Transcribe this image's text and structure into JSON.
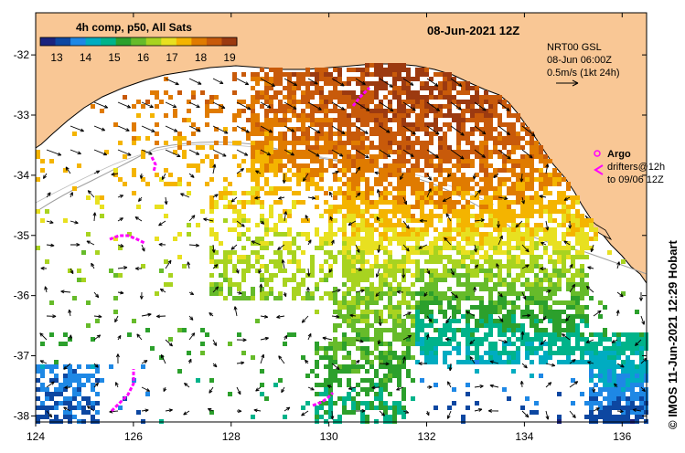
{
  "title": {
    "product": "4h comp, p50, All Sats",
    "date": "08-Jun-2021 12Z"
  },
  "colorbar": {
    "ticks": [
      "13",
      "14",
      "15",
      "16",
      "17",
      "18",
      "19"
    ],
    "colors": [
      "#1a237e",
      "#0d47a1",
      "#1e88e5",
      "#00acc1",
      "#00b38a",
      "#2ca02c",
      "#66bb2a",
      "#a8d320",
      "#e8e020",
      "#f4b400",
      "#e07b00",
      "#c85a0a",
      "#9c3a10"
    ]
  },
  "current_info": {
    "line1": "NRT00 GSL",
    "line2": "08-Jun 06:00Z",
    "line3": "0.5m/s (1kt 24h)"
  },
  "argo": {
    "label": "Argo",
    "line1": "drifters@12h",
    "line2": "to 09/06 12Z"
  },
  "credit": "© IMOS 11-Jun-2021 12:29 Hobart",
  "axes": {
    "lon_labels": [
      "124",
      "126",
      "128",
      "130",
      "132",
      "134",
      "136"
    ],
    "lat_labels": [
      "-32",
      "-33",
      "-34",
      "-35",
      "-36",
      "-37",
      "-38"
    ],
    "lon_range": [
      124,
      136.5
    ],
    "lat_range": [
      -38.1,
      -31.3
    ]
  },
  "colors": {
    "land": "#f9c795",
    "sea": "#ffffff",
    "drifter": "#ff00ff"
  }
}
